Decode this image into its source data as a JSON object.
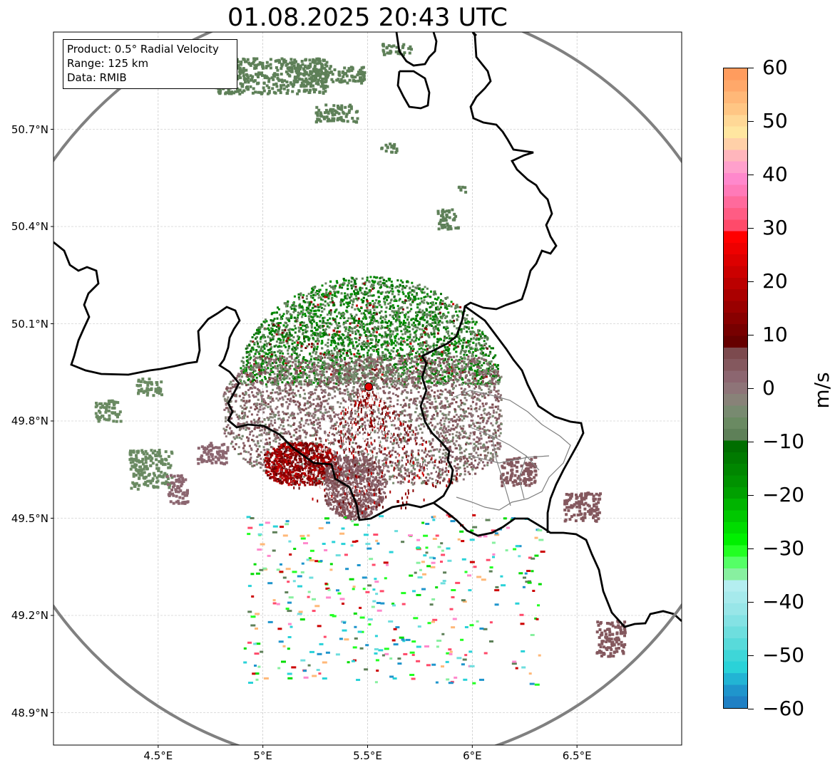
{
  "title": "01.08.2025 20:43 UTC",
  "info_box": {
    "product": "Product: 0.5° Radial Velocity",
    "range": "Range: 125 km",
    "source": "Data: RMIB"
  },
  "map": {
    "lon_range": [
      4.0,
      7.0
    ],
    "lat_range": [
      48.8,
      51.0
    ],
    "radar_site": {
      "lon": 5.505,
      "lat": 49.915
    },
    "lat_ticks": [
      {
        "value": 50.7,
        "label": "50.7°N"
      },
      {
        "value": 50.4,
        "label": "50.4°N"
      },
      {
        "value": 50.1,
        "label": "50.1°N"
      },
      {
        "value": 49.8,
        "label": "49.8°N"
      },
      {
        "value": 49.5,
        "label": "49.5°N"
      },
      {
        "value": 49.2,
        "label": "49.2°N"
      },
      {
        "value": 48.9,
        "label": "48.9°N"
      }
    ],
    "lon_ticks": [
      {
        "value": 4.5,
        "label": "4.5°E"
      },
      {
        "value": 5.0,
        "label": "5°E"
      },
      {
        "value": 5.5,
        "label": "5.5°E"
      },
      {
        "value": 6.0,
        "label": "6°E"
      },
      {
        "value": 6.5,
        "label": "6.5°E"
      }
    ],
    "gridlines": true,
    "range_ring_color": "#808080",
    "border_color": "#000000",
    "radar_marker_color": "#e00000"
  },
  "colorbar": {
    "units": "m/s",
    "min": -60,
    "max": 60,
    "tick_labels": [
      "60",
      "50",
      "40",
      "30",
      "20",
      "10",
      "0",
      "−10",
      "−20",
      "−30",
      "−40",
      "−50",
      "−60"
    ],
    "colors_top_to_bottom": [
      "#ff9c5e",
      "#ffa86a",
      "#ffb878",
      "#ffc684",
      "#ffd896",
      "#ffe6a0",
      "#ffd0a8",
      "#ffb6bc",
      "#ffa0cc",
      "#ff88cc",
      "#ff7ab8",
      "#ff6a9c",
      "#ff5c84",
      "#ff4a6a",
      "#ff0000",
      "#ee0000",
      "#dd0000",
      "#cc0000",
      "#bb0000",
      "#aa0000",
      "#990000",
      "#880000",
      "#770000",
      "#660000",
      "#7c4a4e",
      "#84585e",
      "#8c6670",
      "#8e7478",
      "#888278",
      "#788a70",
      "#6a8a62",
      "#5e8058",
      "#006e00",
      "#007a00",
      "#008600",
      "#009200",
      "#00a000",
      "#00b400",
      "#00c800",
      "#00dc00",
      "#00f000",
      "#22ff22",
      "#55ff66",
      "#88f0a0",
      "#b4eef0",
      "#a6eaec",
      "#98e6e8",
      "#84e2e4",
      "#6edede",
      "#58dada",
      "#3ed6d8",
      "#2ad2d8",
      "#22b4d4",
      "#1f95cc",
      "#1f80c4"
    ]
  }
}
